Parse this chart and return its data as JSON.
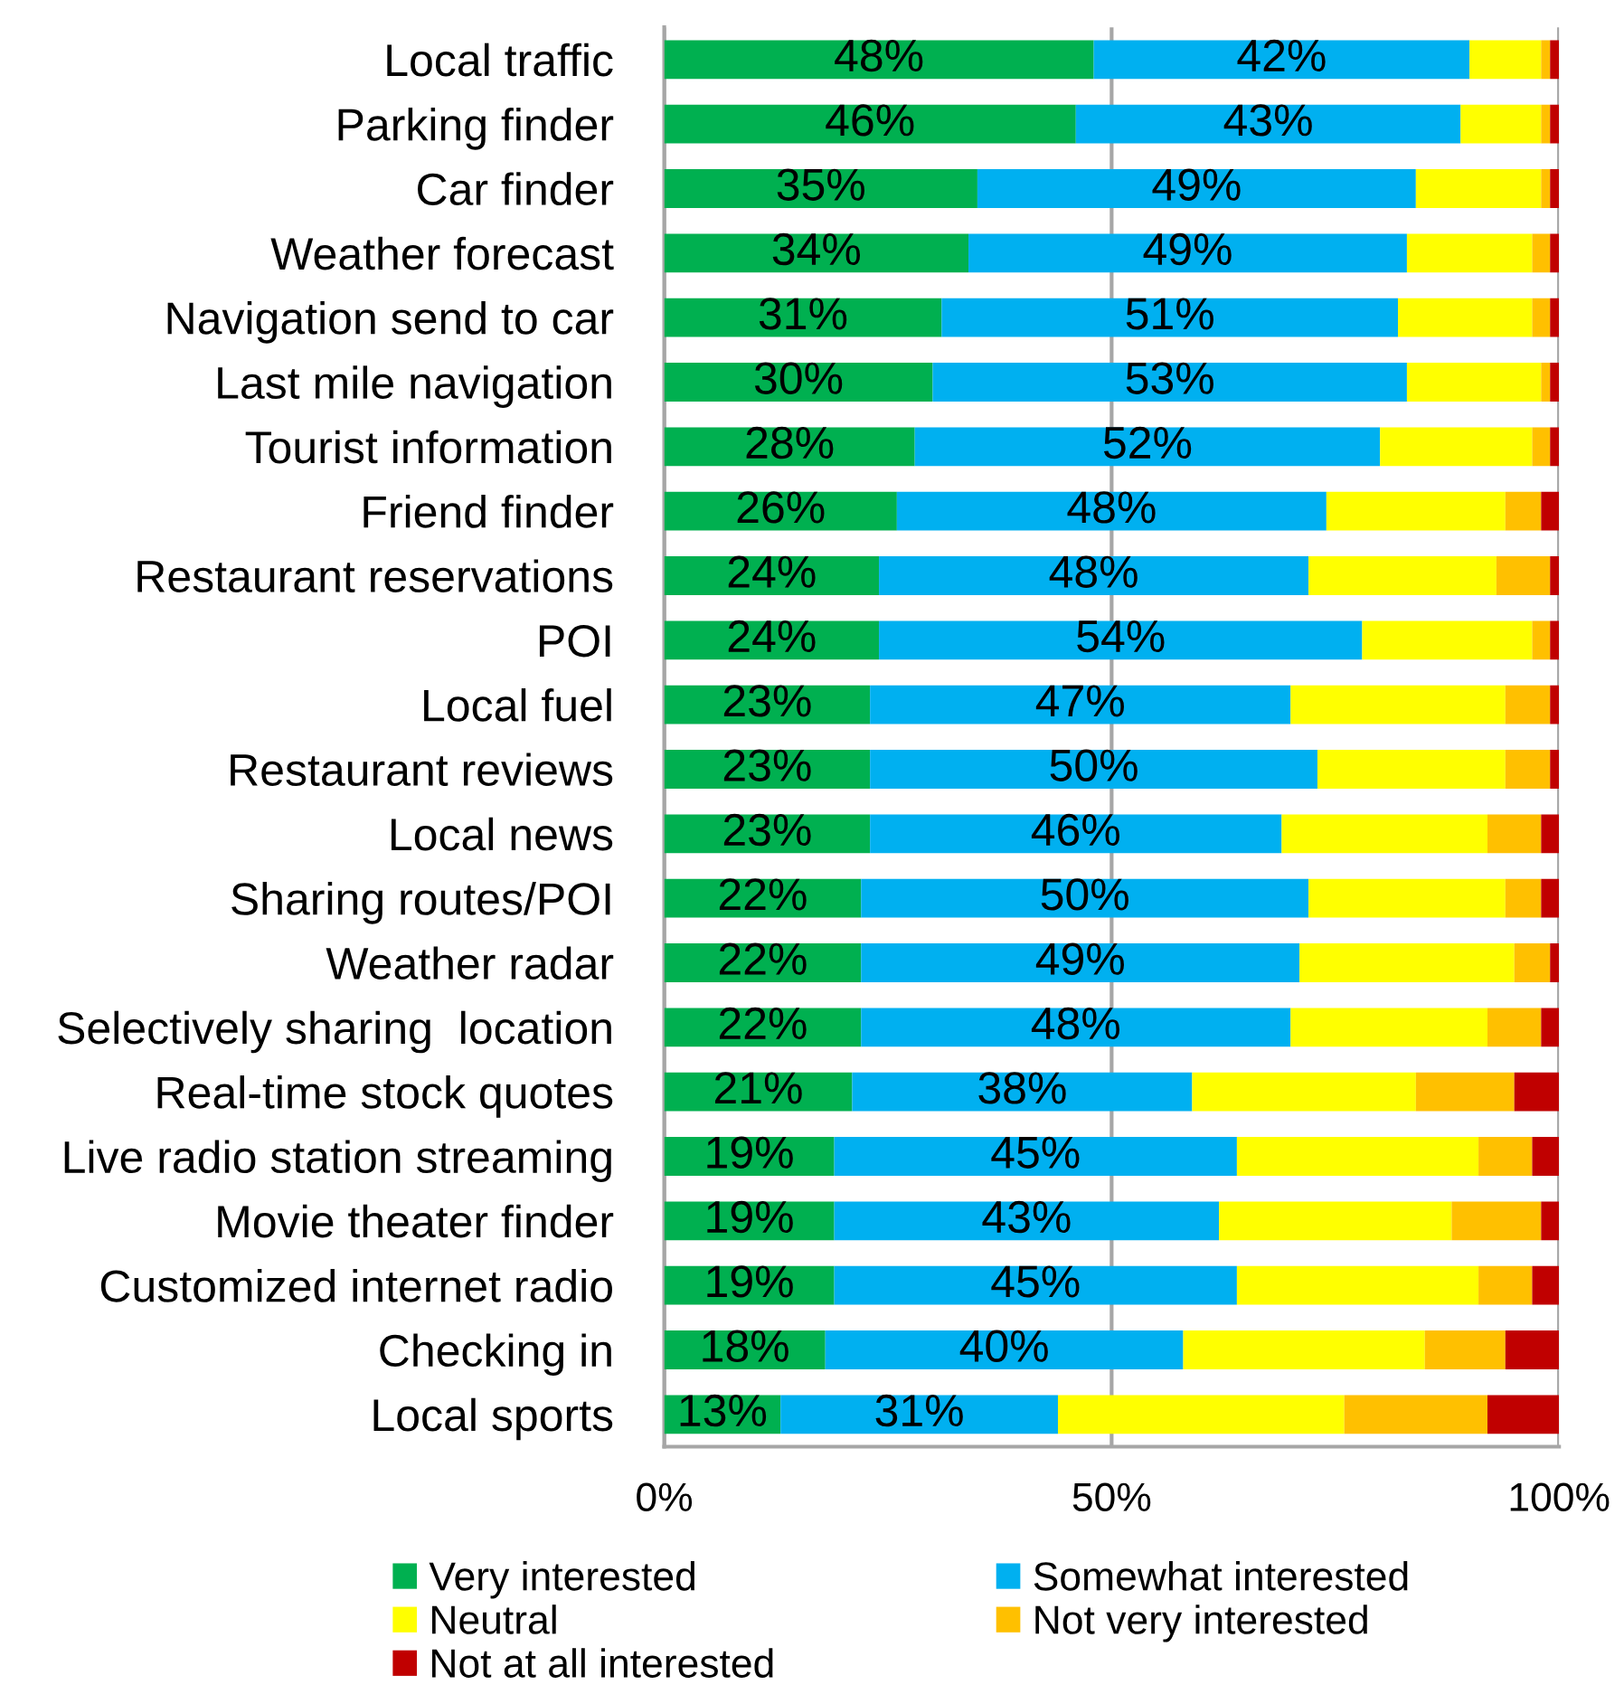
{
  "chart_data": {
    "type": "bar",
    "orientation": "horizontal",
    "stacked": true,
    "categories": [
      "Local traffic",
      "Parking finder",
      "Car finder",
      "Weather forecast",
      "Navigation send to car",
      "Last mile navigation",
      "Tourist information",
      "Friend finder",
      "Restaurant reservations",
      "POI",
      "Local fuel",
      "Restaurant reviews",
      "Local news",
      "Sharing routes/POI",
      "Weather radar",
      "Selectively sharing  location",
      "Real-time stock quotes",
      "Live radio station streaming",
      "Movie theater finder",
      "Customized internet radio",
      "Checking in",
      "Local sports"
    ],
    "series": [
      {
        "name": "Very interested",
        "color": "#00b050",
        "values": [
          48,
          46,
          35,
          34,
          31,
          30,
          28,
          26,
          24,
          24,
          23,
          23,
          23,
          22,
          22,
          22,
          21,
          19,
          19,
          19,
          18,
          13
        ],
        "value_labels": [
          "48%",
          "46%",
          "35%",
          "34%",
          "31%",
          "30%",
          "28%",
          "26%",
          "24%",
          "24%",
          "23%",
          "23%",
          "23%",
          "22%",
          "22%",
          "22%",
          "21%",
          "19%",
          "19%",
          "19%",
          "18%",
          "13%"
        ]
      },
      {
        "name": "Somewhat interested",
        "color": "#00b0f0",
        "values": [
          42,
          43,
          49,
          49,
          51,
          53,
          52,
          48,
          48,
          54,
          47,
          50,
          46,
          50,
          49,
          48,
          38,
          45,
          43,
          45,
          40,
          31
        ],
        "value_labels": [
          "42%",
          "43%",
          "49%",
          "49%",
          "51%",
          "53%",
          "52%",
          "48%",
          "48%",
          "54%",
          "47%",
          "50%",
          "46%",
          "50%",
          "49%",
          "48%",
          "38%",
          "45%",
          "43%",
          "45%",
          "40%",
          "31%"
        ]
      },
      {
        "name": "Neutral",
        "color": "#ffff00",
        "values": [
          8,
          9,
          14,
          14,
          15,
          15,
          17,
          20,
          21,
          19,
          24,
          21,
          23,
          22,
          24,
          22,
          25,
          27,
          26,
          27,
          27,
          32
        ]
      },
      {
        "name": "Not very interested",
        "color": "#ffc000",
        "values": [
          1,
          1,
          1,
          2,
          2,
          1,
          2,
          4,
          6,
          2,
          5,
          5,
          6,
          4,
          4,
          6,
          11,
          6,
          10,
          6,
          9,
          16
        ]
      },
      {
        "name": "Not at all interested",
        "color": "#c00000",
        "values": [
          1,
          1,
          1,
          1,
          1,
          1,
          1,
          2,
          1,
          1,
          1,
          1,
          2,
          2,
          1,
          2,
          5,
          3,
          2,
          3,
          6,
          8
        ]
      }
    ],
    "xlim": [
      0,
      100
    ],
    "xticks": [
      {
        "value": 0,
        "label": "0%"
      },
      {
        "value": 50,
        "label": "50%"
      },
      {
        "value": 100,
        "label": "100%"
      }
    ],
    "grid": "x",
    "legend": "bottom"
  }
}
